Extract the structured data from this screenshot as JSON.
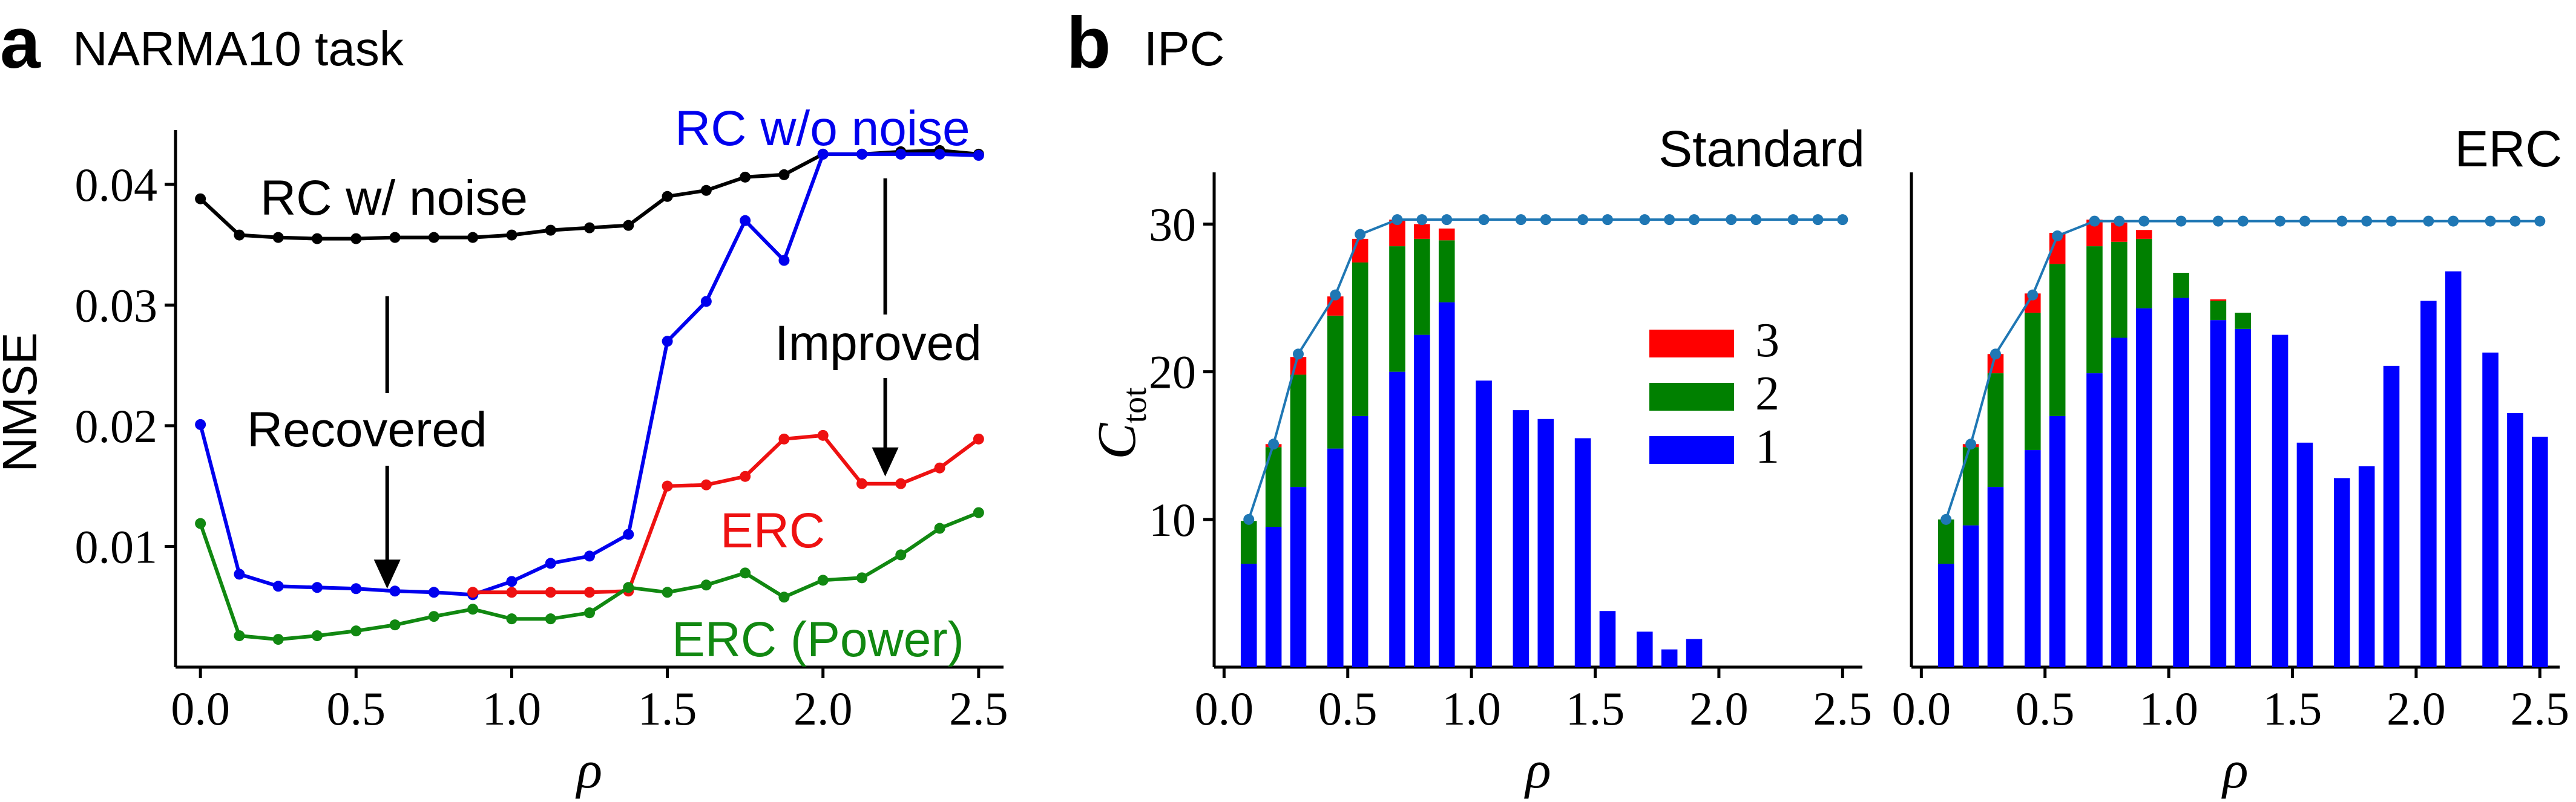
{
  "panels": [
    {
      "letter": "a",
      "title": "NARMA10 task"
    },
    {
      "letter": "b",
      "title": "IPC"
    }
  ],
  "chart_data": [
    {
      "type": "line",
      "title": "NARMA10 task",
      "xlabel": "ρ",
      "ylabel": "NMSE",
      "xlim": [
        -0.08,
        2.58
      ],
      "ylim": [
        0.0,
        0.0445
      ],
      "xticks": [
        "0.0",
        "0.5",
        "1.0",
        "1.5",
        "2.0",
        "2.5"
      ],
      "xtick_values": [
        0,
        0.5,
        1.0,
        1.5,
        2.0,
        2.5
      ],
      "yticks": [
        "0.01",
        "0.02",
        "0.03",
        "0.04"
      ],
      "ytick_values": [
        0.01,
        0.02,
        0.03,
        0.04
      ],
      "x": [
        0.0,
        0.125,
        0.25,
        0.375,
        0.5,
        0.625,
        0.75,
        0.875,
        1.0,
        1.125,
        1.25,
        1.375,
        1.5,
        1.625,
        1.75,
        1.875,
        2.0,
        2.125,
        2.25,
        2.375,
        2.5
      ],
      "series": [
        {
          "name": "RC w/ noise",
          "color": "#000000",
          "values": [
            0.0388,
            0.0358,
            0.0356,
            0.0355,
            0.0355,
            0.0356,
            0.0356,
            0.0356,
            0.0358,
            0.0362,
            0.0364,
            0.0366,
            0.039,
            0.0395,
            0.0406,
            0.0408,
            0.0425,
            0.0425,
            0.0427,
            0.0428,
            0.0425
          ]
        },
        {
          "name": "RC w/o noise",
          "color": "#0000ee",
          "values": [
            0.0201,
            0.0077,
            0.0067,
            0.0066,
            0.0065,
            0.0063,
            0.0062,
            0.006,
            0.0071,
            0.0086,
            0.0092,
            0.011,
            0.027,
            0.0303,
            0.037,
            0.0337,
            0.0425,
            0.0425,
            0.0425,
            0.0425,
            0.0424
          ]
        },
        {
          "name": "ERC",
          "color": "#ee1111",
          "values": [
            null,
            null,
            null,
            null,
            null,
            null,
            null,
            0.0062,
            0.0062,
            0.0062,
            0.0062,
            0.0063,
            0.015,
            0.0151,
            0.0158,
            0.0189,
            0.0192,
            0.0152,
            0.0152,
            0.0165,
            0.0189
          ]
        },
        {
          "name": "ERC (Power)",
          "color": "#118811",
          "values": [
            0.0119,
            0.0026,
            0.0023,
            0.0026,
            0.003,
            0.0035,
            0.0042,
            0.0048,
            0.004,
            0.004,
            0.0045,
            0.0066,
            0.0062,
            0.0068,
            0.0078,
            0.0058,
            0.0072,
            0.0074,
            0.0093,
            0.0115,
            0.0128
          ]
        }
      ],
      "annotations": [
        {
          "text": "RC w/ noise",
          "color": "#000000"
        },
        {
          "text": "RC w/o noise",
          "color": "#0000ee"
        },
        {
          "text": "ERC",
          "color": "#ee1111"
        },
        {
          "text": "ERC (Power)",
          "color": "#118811"
        },
        {
          "text": "Recovered",
          "color": "#000000",
          "arrow_from": [
            0.6,
            0.0355
          ],
          "arrow_to": [
            0.6,
            0.0062
          ]
        },
        {
          "text": "Improved",
          "color": "#000000",
          "arrow_from": [
            2.2,
            0.0425
          ],
          "arrow_to": [
            2.2,
            0.0155
          ]
        }
      ]
    },
    {
      "type": "bar",
      "title": "Standard",
      "xlabel": "ρ",
      "ylabel_main": "C",
      "ylabel_sub": "tot",
      "xlim": [
        -0.04,
        2.58
      ],
      "ylim": [
        0,
        33.5
      ],
      "xticks": [
        "0.0",
        "0.5",
        "1.0",
        "1.5",
        "2.0",
        "2.5"
      ],
      "xtick_values": [
        0,
        0.5,
        1.0,
        1.5,
        2.0,
        2.5
      ],
      "yticks": [
        "10",
        "20",
        "30"
      ],
      "ytick_values": [
        10,
        20,
        30
      ],
      "x": [
        0.1,
        0.2,
        0.3,
        0.45,
        0.55,
        0.7,
        0.8,
        0.9,
        1.05,
        1.2,
        1.3,
        1.45,
        1.55,
        1.7,
        1.8,
        1.9,
        2.05,
        2.15,
        2.3,
        2.4,
        2.5
      ],
      "series": [
        {
          "name": "1",
          "color": "#0000ff",
          "values": [
            7.0,
            9.5,
            12.2,
            14.8,
            17.0,
            20.0,
            22.5,
            24.7,
            19.4,
            17.4,
            16.8,
            15.5,
            3.8,
            2.4,
            1.2,
            1.9,
            0,
            0,
            0,
            0,
            0
          ]
        },
        {
          "name": "2",
          "color": "#008000",
          "values": [
            2.9,
            5.4,
            7.6,
            9.0,
            10.4,
            8.5,
            6.5,
            4.2,
            0,
            0,
            0,
            0,
            0,
            0,
            0,
            0,
            0,
            0,
            0,
            0,
            0
          ]
        },
        {
          "name": "3",
          "color": "#ff0000",
          "values": [
            0,
            0.2,
            1.2,
            1.3,
            1.6,
            1.8,
            1.0,
            0.8,
            0,
            0,
            0,
            0,
            0,
            0,
            0,
            0,
            0,
            0,
            0,
            0,
            0
          ]
        }
      ],
      "total_line": {
        "color": "#1f77b4",
        "values": [
          10.0,
          15.1,
          21.2,
          25.2,
          29.3,
          30.3,
          30.3,
          30.3,
          30.3,
          30.3,
          30.3,
          30.3,
          30.3,
          30.3,
          30.3,
          30.3,
          30.3,
          30.3,
          30.3,
          30.3,
          30.3
        ]
      },
      "legend": [
        "3",
        "2",
        "1"
      ]
    },
    {
      "type": "bar",
      "title": "ERC",
      "xlabel": "ρ",
      "xlim": [
        -0.04,
        2.58
      ],
      "ylim": [
        0,
        33.5
      ],
      "xticks": [
        "0.0",
        "0.5",
        "1.0",
        "1.5",
        "2.0",
        "2.5"
      ],
      "xtick_values": [
        0,
        0.5,
        1.0,
        1.5,
        2.0,
        2.5
      ],
      "x": [
        0.1,
        0.2,
        0.3,
        0.45,
        0.55,
        0.7,
        0.8,
        0.9,
        1.05,
        1.2,
        1.3,
        1.45,
        1.55,
        1.7,
        1.8,
        1.9,
        2.05,
        2.15,
        2.3,
        2.4,
        2.5
      ],
      "series": [
        {
          "name": "1",
          "color": "#0000ff",
          "values": [
            7.0,
            9.6,
            12.2,
            14.7,
            17.0,
            19.9,
            22.3,
            24.3,
            25.0,
            23.5,
            22.9,
            22.5,
            15.2,
            12.8,
            13.6,
            20.4,
            24.8,
            26.8,
            21.3,
            17.2,
            15.6
          ]
        },
        {
          "name": "2",
          "color": "#008000",
          "values": [
            3.0,
            5.3,
            7.7,
            9.3,
            10.3,
            8.6,
            6.5,
            4.7,
            1.7,
            1.3,
            1.1,
            0,
            0,
            0,
            0,
            0,
            0,
            0,
            0,
            0,
            0
          ]
        },
        {
          "name": "3",
          "color": "#ff0000",
          "values": [
            0,
            0.2,
            1.3,
            1.3,
            2.1,
            1.8,
            1.3,
            0.6,
            0,
            0.1,
            0,
            0,
            0,
            0,
            0,
            0,
            0,
            0,
            0,
            0,
            0
          ]
        }
      ],
      "total_line": {
        "color": "#1f77b4",
        "values": [
          10.0,
          15.1,
          21.2,
          25.2,
          29.2,
          30.2,
          30.2,
          30.2,
          30.2,
          30.2,
          30.2,
          30.2,
          30.2,
          30.2,
          30.2,
          30.2,
          30.2,
          30.2,
          30.2,
          30.2,
          30.2
        ]
      }
    }
  ]
}
